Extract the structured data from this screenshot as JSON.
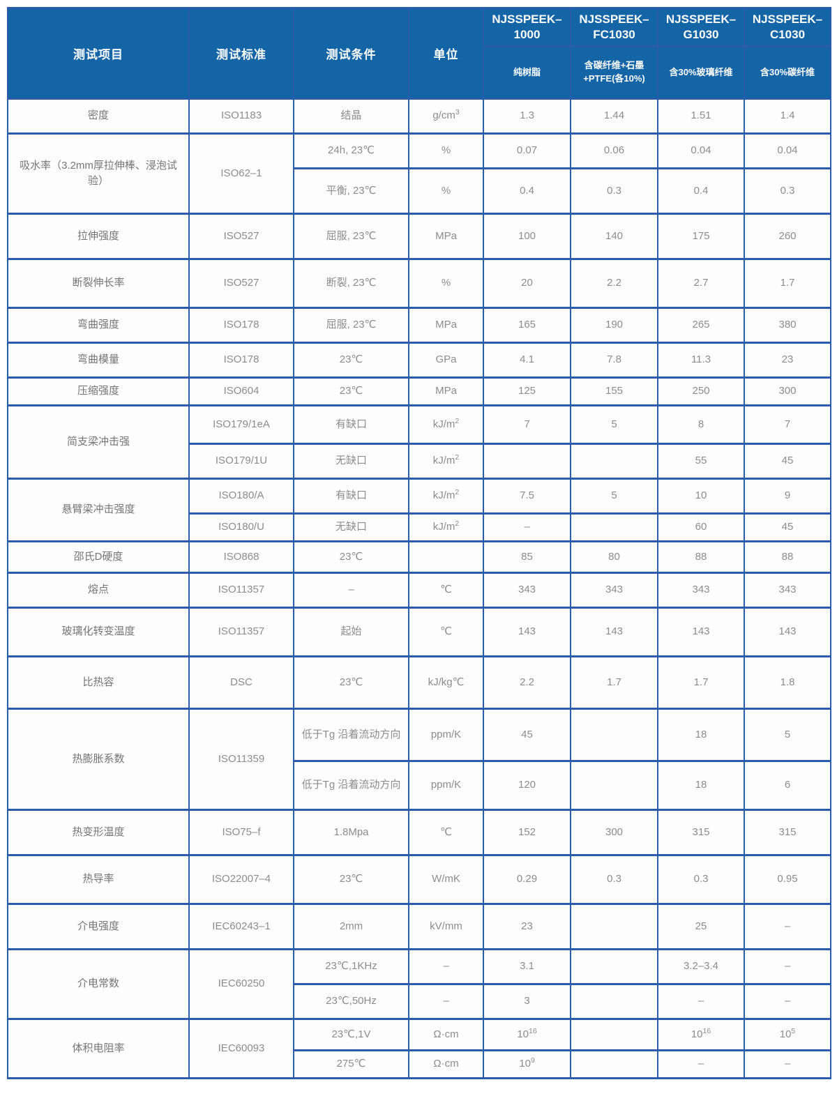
{
  "header": {
    "item": "测试项目",
    "standard": "测试标准",
    "condition": "测试条件",
    "unit": "单位",
    "products": [
      {
        "name": "NJSSPEEK–1000",
        "desc": "纯树脂"
      },
      {
        "name": "NJSSPEEK–FC1030",
        "desc": "含碳纤维+石墨+PTFE(各10%)"
      },
      {
        "name": "NJSSPEEK–G1030",
        "desc": "含30%玻璃纤维"
      },
      {
        "name": "NJSSPEEK–C1030",
        "desc": "含30%碳纤维"
      }
    ]
  },
  "colors": {
    "header_background": "#1465a6",
    "grid_border": "#2b5caa",
    "cell_text": "#8c8c8c"
  },
  "rows": [
    {
      "item": "密度",
      "standard": "ISO1183",
      "condition": "结晶",
      "unit": "g/cm^3",
      "values": [
        "1.3",
        "1.44",
        "1.51",
        "1.4"
      ]
    },
    {
      "item": "吸水率（3.2mm厚拉伸棒、浸泡试验）",
      "standard": "ISO62–1",
      "condition": "24h, 23℃",
      "unit": "%",
      "values": [
        "0.07",
        "0.06",
        "0.04",
        "0.04"
      ]
    },
    {
      "condition": "平衡, 23℃",
      "unit": "%",
      "values": [
        "0.4",
        "0.3",
        "0.4",
        "0.3"
      ]
    },
    {
      "item": "拉伸强度",
      "standard": "ISO527",
      "condition": "屈服, 23℃",
      "unit": "MPa",
      "values": [
        "100",
        "140",
        "175",
        "260"
      ]
    },
    {
      "item": "断裂伸长率",
      "standard": "ISO527",
      "condition": "断裂, 23℃",
      "unit": "%",
      "values": [
        "20",
        "2.2",
        "2.7",
        "1.7"
      ]
    },
    {
      "item": "弯曲强度",
      "standard": "ISO178",
      "condition": "屈服, 23℃",
      "unit": "MPa",
      "values": [
        "165",
        "190",
        "265",
        "380"
      ]
    },
    {
      "item": "弯曲模量",
      "standard": "ISO178",
      "condition": "23℃",
      "unit": "GPa",
      "values": [
        "4.1",
        "7.8",
        "11.3",
        "23"
      ]
    },
    {
      "item": "压缩强度",
      "standard": "ISO604",
      "condition": "23℃",
      "unit": "MPa",
      "values": [
        "125",
        "155",
        "250",
        "300"
      ]
    },
    {
      "item": "简支梁冲击强",
      "standard": "ISO179/1eA",
      "condition": "有缺口",
      "unit": "kJ/m^2",
      "values": [
        "7",
        "5",
        "8",
        "7"
      ]
    },
    {
      "standard": "ISO179/1U",
      "condition": "无缺口",
      "unit": "kJ/m^2",
      "values": [
        "",
        "",
        "55",
        "45"
      ]
    },
    {
      "item": "悬臂梁冲击强度",
      "standard": "ISO180/A",
      "condition": "有缺口",
      "unit": "kJ/m^2",
      "values": [
        "7.5",
        "5",
        "10",
        "9"
      ]
    },
    {
      "standard": "ISO180/U",
      "condition": "无缺口",
      "unit": "kJ/m^2",
      "values": [
        "–",
        "",
        "60",
        "45"
      ]
    },
    {
      "item": "邵氏D硬度",
      "standard": "ISO868",
      "condition": "23℃",
      "unit": "",
      "values": [
        "85",
        "80",
        "88",
        "88"
      ]
    },
    {
      "item": "熔点",
      "standard": "ISO11357",
      "condition": "–",
      "unit": "℃",
      "values": [
        "343",
        "343",
        "343",
        "343"
      ]
    },
    {
      "item": "玻璃化转变温度",
      "standard": "ISO11357",
      "condition": "起始",
      "unit": "℃",
      "values": [
        "143",
        "143",
        "143",
        "143"
      ]
    },
    {
      "item": "比热容",
      "standard": "DSC",
      "condition": "23℃",
      "unit": "kJ/kg℃",
      "values": [
        "2.2",
        "1.7",
        "1.7",
        "1.8"
      ]
    },
    {
      "item": "热膨胀系数",
      "standard": "ISO11359",
      "condition": "低于Tg 沿着流动方向",
      "unit": "ppm/K",
      "values": [
        "45",
        "",
        "18",
        "5"
      ]
    },
    {
      "condition": "低于Tg 沿着流动方向",
      "unit": "ppm/K",
      "values": [
        "120",
        "",
        "18",
        "6"
      ]
    },
    {
      "item": "热变形温度",
      "standard": "ISO75–f",
      "condition": "1.8Mpa",
      "unit": "℃",
      "values": [
        "152",
        "300",
        "315",
        "315"
      ]
    },
    {
      "item": "热导率",
      "standard": "ISO22007–4",
      "condition": "23℃",
      "unit": "W/mK",
      "values": [
        "0.29",
        "0.3",
        "0.3",
        "0.95"
      ]
    },
    {
      "item": "介电强度",
      "standard": "IEC60243–1",
      "condition": "2mm",
      "unit": "kV/mm",
      "values": [
        "23",
        "",
        "25",
        "–"
      ]
    },
    {
      "item": "介电常数",
      "standard": "IEC60250",
      "condition": "23℃,1KHz",
      "unit": "–",
      "values": [
        "3.1",
        "",
        "3.2–3.4",
        "–"
      ]
    },
    {
      "condition": "23℃,50Hz",
      "unit": "–",
      "values": [
        "3",
        "",
        "–",
        "–"
      ]
    },
    {
      "item": "体积电阻率",
      "standard": "IEC60093",
      "condition": "23℃,1V",
      "unit": "Ω·cm",
      "values": [
        "10^16",
        "",
        "10^16",
        "10^5"
      ]
    },
    {
      "condition": "275℃",
      "unit": "Ω·cm",
      "values": [
        "10^9",
        "",
        "–",
        "–"
      ]
    }
  ]
}
